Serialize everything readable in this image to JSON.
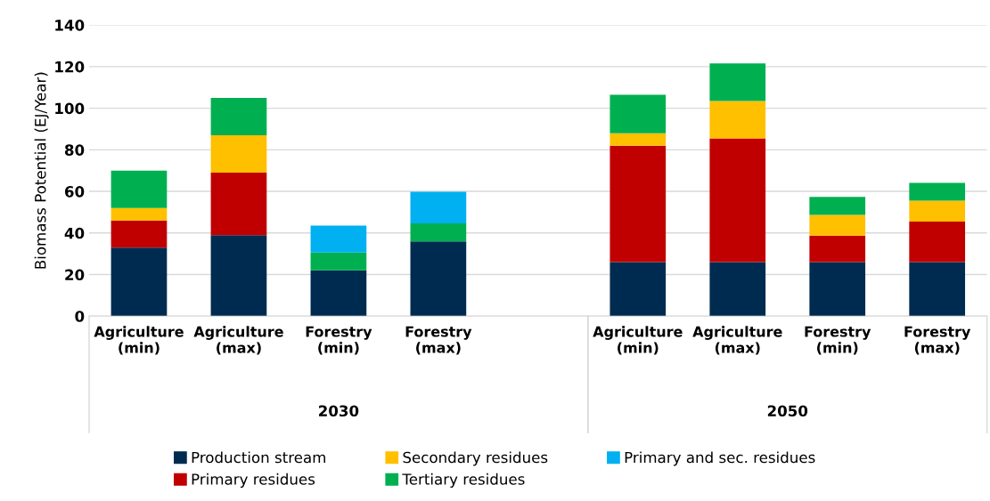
{
  "chart_data": {
    "type": "bar",
    "stacked": true,
    "ylabel": "Biomass Potential (EJ/Year)",
    "categories": [
      "Agriculture\n(min)",
      "Agriculture\n(max)",
      "Forestry\n(min)",
      "Forestry\n(max)",
      null,
      "Agriculture\n(min)",
      "Agriculture\n(max)",
      "Forestry\n(min)",
      "Forestry\n(max)"
    ],
    "series": [
      {
        "name": "Production stream",
        "color": "#002b50",
        "values": [
          33,
          39,
          22,
          36,
          null,
          26,
          26,
          26,
          26
        ]
      },
      {
        "name": "Primary residues",
        "color": "#c00000",
        "values": [
          13,
          30,
          null,
          null,
          null,
          56,
          59.5,
          12.7,
          19.5
        ]
      },
      {
        "name": "Secondary residues",
        "color": "#ffc000",
        "values": [
          6,
          18,
          null,
          null,
          null,
          6,
          18,
          10,
          10
        ]
      },
      {
        "name": "Tertiary residues",
        "color": "#00b050",
        "values": [
          18,
          18,
          8.6,
          8.6,
          null,
          18.5,
          18,
          8.7,
          8.6
        ]
      },
      {
        "name": "Primary and sec. residues",
        "color": "#00b0f0",
        "values": [
          null,
          null,
          13,
          15.2,
          null,
          null,
          null,
          null,
          null
        ]
      }
    ],
    "ylim": [
      0,
      140
    ],
    "yticks": [
      0,
      20,
      40,
      60,
      80,
      100,
      120,
      140
    ],
    "grid": "y",
    "legend": "bottom",
    "annotations": [
      "2030",
      "2050"
    ]
  }
}
